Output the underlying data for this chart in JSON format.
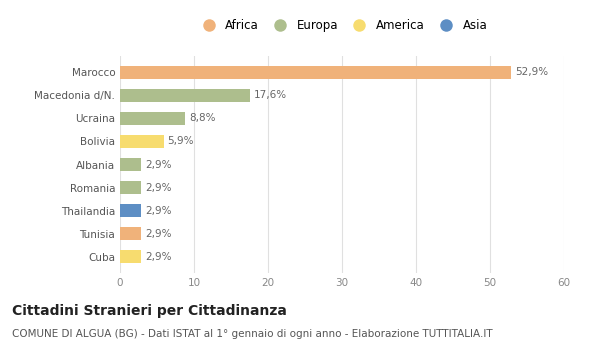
{
  "countries": [
    "Marocco",
    "Macedonia d/N.",
    "Ucraina",
    "Bolivia",
    "Albania",
    "Romania",
    "Thailandia",
    "Tunisia",
    "Cuba"
  ],
  "values": [
    52.9,
    17.6,
    8.8,
    5.9,
    2.9,
    2.9,
    2.9,
    2.9,
    2.9
  ],
  "labels": [
    "52,9%",
    "17,6%",
    "8,8%",
    "5,9%",
    "2,9%",
    "2,9%",
    "2,9%",
    "2,9%",
    "2,9%"
  ],
  "continents": [
    "Africa",
    "Europa",
    "Europa",
    "America",
    "Europa",
    "Europa",
    "Asia",
    "Africa",
    "America"
  ],
  "colors": {
    "Africa": "#F0B27A",
    "Europa": "#ADBE8D",
    "America": "#F7DC6F",
    "Asia": "#5D8EC4"
  },
  "legend_order": [
    "Africa",
    "Europa",
    "America",
    "Asia"
  ],
  "xlim": [
    0,
    60
  ],
  "xticks": [
    0,
    10,
    20,
    30,
    40,
    50,
    60
  ],
  "title": "Cittadini Stranieri per Cittadinanza",
  "subtitle": "COMUNE DI ALGUA (BG) - Dati ISTAT al 1° gennaio di ogni anno - Elaborazione TUTTITALIA.IT",
  "background_color": "#ffffff",
  "grid_color": "#e0e0e0",
  "bar_height": 0.55,
  "label_fontsize": 7.5,
  "tick_fontsize": 7.5,
  "title_fontsize": 10,
  "subtitle_fontsize": 7.5
}
